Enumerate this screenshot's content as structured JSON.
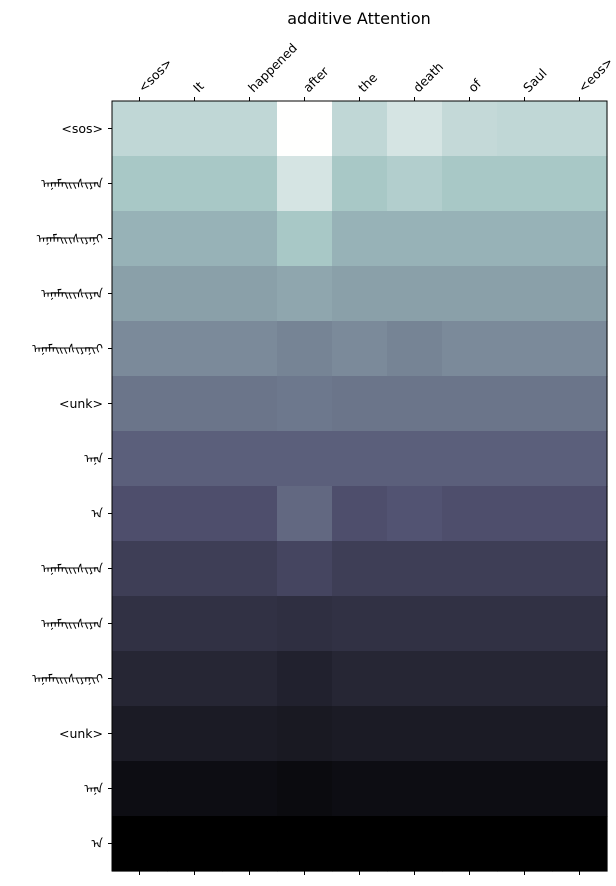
{
  "chart_data": {
    "type": "heatmap",
    "title": "additive Attention",
    "x_tick_labels": [
      "<sos>",
      "It",
      "happened",
      "after",
      "the",
      "death",
      "of",
      "Saul",
      "<eos>"
    ],
    "y_tick_labels": [
      "<sos>",
      "ᠠᠨᠠᠮᠠᠢᠢᠰᠢᠶᠠᠨ",
      "ᠠᠨᠠᠮᠠᠢᠢᠰᠢᠶᠠᠨᠢ",
      "ᠠᠨᠠᠮᠠᠢᠢᠰᠢᠶᠠᠨ",
      "ᠠᠨᠠᠮᠠᠢᠢᠰᠢᠶᠠᠨᠢᠢ",
      "<unk>",
      "ᠠᠨᠠ",
      "ᠠ",
      "ᠠᠨᠠᠮᠠᠢᠢᠰᠢᠶᠠᠨ",
      "ᠠᠨᠠᠮᠠᠢᠢᠰᠢᠶᠠᠨ",
      "ᠠᠨᠠᠮᠠᠢᠢᠰᠢᠶᠠᠨᠢᠢ",
      "<unk>",
      "ᠠᠨᠠ",
      "ᠠ"
    ],
    "colormap": "bone",
    "values": [
      [
        0.82,
        0.82,
        0.82,
        1.0,
        0.82,
        0.88,
        0.83,
        0.82,
        0.82
      ],
      [
        0.75,
        0.75,
        0.75,
        0.88,
        0.75,
        0.78,
        0.75,
        0.75,
        0.75
      ],
      [
        0.68,
        0.68,
        0.68,
        0.75,
        0.68,
        0.68,
        0.68,
        0.68,
        0.68
      ],
      [
        0.62,
        0.62,
        0.62,
        0.64,
        0.62,
        0.62,
        0.62,
        0.62,
        0.62
      ],
      [
        0.55,
        0.55,
        0.55,
        0.53,
        0.55,
        0.53,
        0.55,
        0.55,
        0.55
      ],
      [
        0.48,
        0.48,
        0.48,
        0.49,
        0.48,
        0.48,
        0.48,
        0.48,
        0.48
      ],
      [
        0.41,
        0.41,
        0.41,
        0.41,
        0.41,
        0.41,
        0.41,
        0.41,
        0.41
      ],
      [
        0.35,
        0.35,
        0.35,
        0.44,
        0.35,
        0.37,
        0.35,
        0.35,
        0.35
      ],
      [
        0.28,
        0.28,
        0.28,
        0.31,
        0.28,
        0.28,
        0.28,
        0.28,
        0.28
      ],
      [
        0.22,
        0.22,
        0.22,
        0.21,
        0.22,
        0.22,
        0.22,
        0.22,
        0.22
      ],
      [
        0.17,
        0.17,
        0.17,
        0.15,
        0.17,
        0.17,
        0.17,
        0.17,
        0.17
      ],
      [
        0.12,
        0.12,
        0.12,
        0.11,
        0.12,
        0.12,
        0.12,
        0.12,
        0.12
      ],
      [
        0.06,
        0.06,
        0.06,
        0.05,
        0.06,
        0.06,
        0.06,
        0.06,
        0.06
      ],
      [
        0.0,
        0.0,
        0.0,
        0.0,
        0.0,
        0.0,
        0.0,
        0.0,
        0.0
      ]
    ]
  }
}
